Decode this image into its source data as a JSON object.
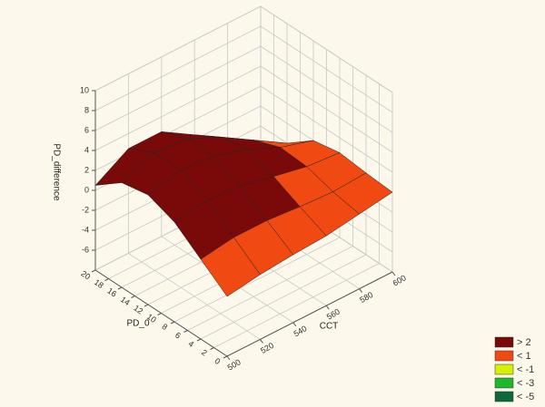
{
  "chart_data": {
    "type": "surface3d",
    "x_label": "CCT",
    "y_label": "PD_0",
    "z_label": "PD_difference",
    "x": [
      500,
      520,
      540,
      560,
      580,
      600
    ],
    "y": [
      0,
      4,
      8,
      12,
      16,
      20
    ],
    "z": [
      [
        -2,
        -1.5,
        -1.2,
        -1,
        -0.5,
        0
      ],
      [
        0,
        0.5,
        0.5,
        0.2,
        0,
        0.2
      ],
      [
        2,
        2.5,
        2.2,
        1.5,
        0.8,
        0.5
      ],
      [
        3,
        3.8,
        3.5,
        2.5,
        1,
        0
      ],
      [
        2.5,
        3.8,
        3.5,
        2,
        0,
        -2
      ],
      [
        0.5,
        2.5,
        2.5,
        0.5,
        -2,
        -4
      ]
    ],
    "xlim": [
      500,
      600
    ],
    "ylim": [
      0,
      20
    ],
    "zlim": [
      -8,
      10
    ],
    "xticks": [
      500,
      520,
      540,
      560,
      580,
      600
    ],
    "yticks": [
      0,
      2,
      4,
      6,
      8,
      10,
      12,
      14,
      16,
      18,
      20
    ],
    "zticks": [
      -6,
      -4,
      -2,
      0,
      2,
      4,
      6,
      8,
      10
    ],
    "grid": true,
    "legend_position": "bottom-right",
    "legend": [
      {
        "value": 2,
        "label": "> 2",
        "color": "#7a0a0a"
      },
      {
        "value": 1,
        "label": "< 1",
        "color": "#f04a12"
      },
      {
        "value": -1,
        "label": "< -1",
        "color": "#d8f000"
      },
      {
        "value": -3,
        "label": "< -3",
        "color": "#1fb82a"
      },
      {
        "value": -5,
        "label": "< -5",
        "color": "#0a6a3a"
      }
    ]
  }
}
